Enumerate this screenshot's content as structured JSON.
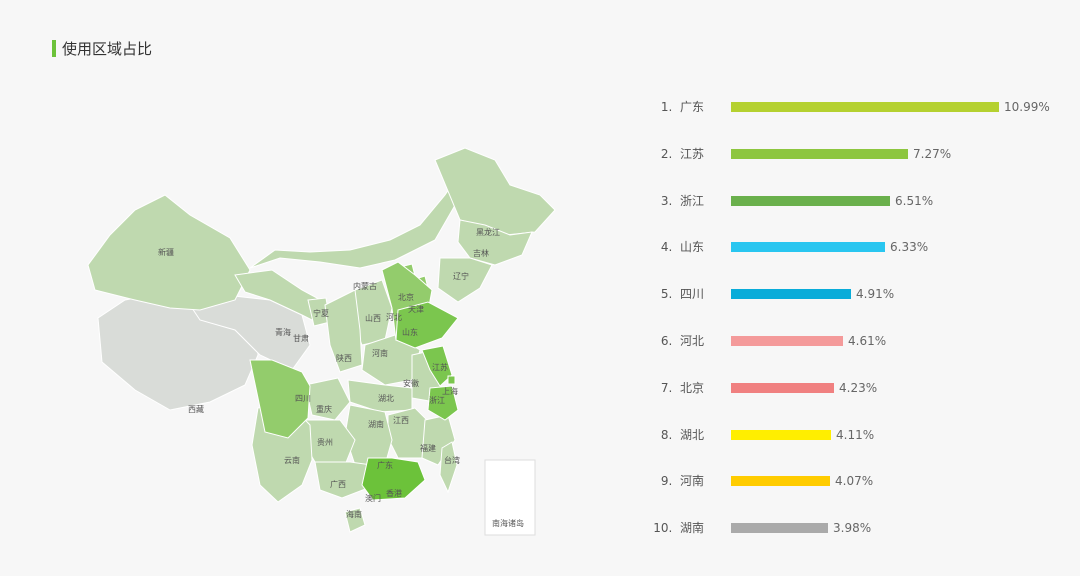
{
  "page": {
    "title": "使用区域占比"
  },
  "map": {
    "labels": {
      "xinjiang": "新疆",
      "xizang": "西藏",
      "qinghai": "青海",
      "gansu": "甘肃",
      "ningxia": "宁夏",
      "neimenggu": "内蒙古",
      "heilongjiang": "黑龙江",
      "jilin": "吉林",
      "liaoning": "辽宁",
      "beijing": "北京",
      "tianjin": "天津",
      "hebei": "河北",
      "shanxi": "山西",
      "shandong": "山东",
      "shaanxi": "陕西",
      "henan": "河南",
      "jiangsu": "江苏",
      "anhui": "安徽",
      "shanghai": "上海",
      "sichuan": "四川",
      "chongqing": "重庆",
      "hubei": "湖北",
      "zhejiang": "浙江",
      "jiangxi": "江西",
      "hunan": "湖南",
      "guizhou": "贵州",
      "fujian": "福建",
      "taiwan": "台湾",
      "yunnan": "云南",
      "guangxi": "广西",
      "guangdong": "广东",
      "aomen": "澳门",
      "xianggang": "香港",
      "hainan": "海南",
      "inset": "南海诸岛"
    },
    "colors": {
      "light": "#bfd9af",
      "mid": "#93cc6c",
      "strong": "#7bc64e",
      "top": "#6cc23a",
      "gray": "#d9dcd8",
      "border": "#ffffff"
    }
  },
  "chart_data": {
    "type": "bar",
    "title": "使用区域占比",
    "categories": [
      "广东",
      "江苏",
      "浙江",
      "山东",
      "四川",
      "河北",
      "北京",
      "湖北",
      "河南",
      "湖南"
    ],
    "values": [
      10.99,
      7.27,
      6.51,
      6.33,
      4.91,
      4.61,
      4.23,
      4.11,
      4.07,
      3.98
    ],
    "value_labels": [
      "10.99%",
      "7.27%",
      "6.51%",
      "6.33%",
      "4.91%",
      "4.61%",
      "4.23%",
      "4.11%",
      "4.07%",
      "3.98%"
    ],
    "rank_labels": [
      "1.  广东",
      "2.  江苏",
      "3.  浙江",
      "4.  山东",
      "5.  四川",
      "6.  河北",
      "7.  北京",
      "8.  湖北",
      "9.  河南",
      "10.  湖南"
    ],
    "colors": [
      "#b5d130",
      "#8dc63f",
      "#6ab04c",
      "#29c6f0",
      "#09acd9",
      "#f49a9a",
      "#f08080",
      "#ffee00",
      "#ffcc00",
      "#aaaaaa"
    ],
    "xlim": [
      0,
      10.99
    ],
    "grid": false,
    "legend": "none"
  }
}
